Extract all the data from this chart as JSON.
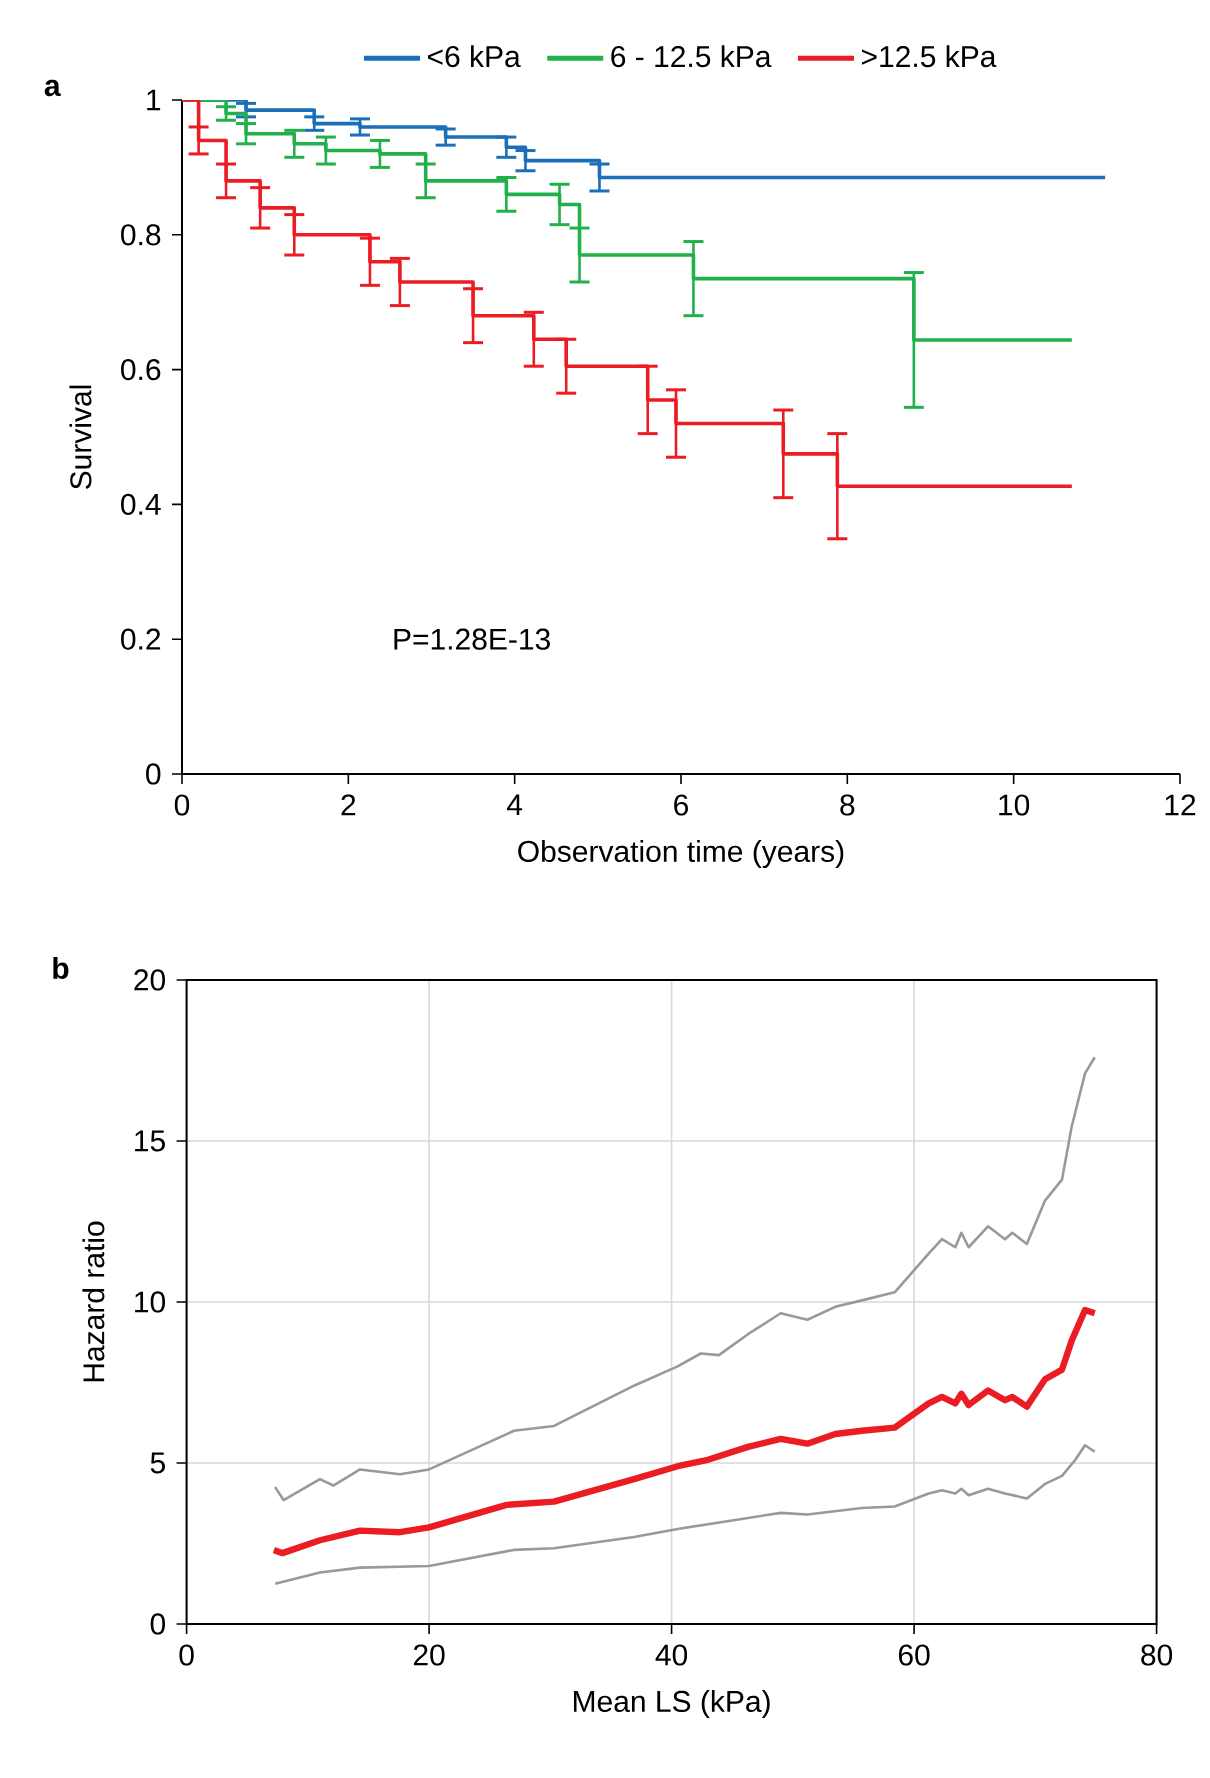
{
  "chart_data": [
    {
      "type": "step",
      "title": "a",
      "xlabel": "Observation time (years)",
      "ylabel": "Survival",
      "xlim": [
        0,
        12
      ],
      "ylim": [
        0,
        1
      ],
      "xticks": [
        0,
        2,
        4,
        6,
        8,
        10,
        12
      ],
      "yticks": [
        0,
        0.2,
        0.4,
        0.6,
        0.8,
        1
      ],
      "legend": "top",
      "grid": false,
      "annotations": [
        "P=1.28E-13"
      ],
      "series": [
        {
          "name": "<6 kPa",
          "color": "#1a6fb8",
          "x": [
            0,
            0.77,
            1.59,
            2.14,
            3.17,
            3.9,
            4.13,
            5.02,
            11.1
          ],
          "values": [
            1,
            0.985,
            0.965,
            0.96,
            0.945,
            0.93,
            0.91,
            0.885,
            0.885
          ],
          "errors": [
            null,
            0.01,
            0.01,
            0.012,
            0.012,
            0.015,
            0.015,
            0.02,
            null
          ]
        },
        {
          "name": "6 - 12.5 kPa",
          "color": "#22b04b",
          "x": [
            0,
            0.53,
            0.77,
            1.35,
            1.73,
            2.38,
            2.93,
            3.9,
            4.54,
            4.78,
            6.15,
            8.8,
            10.7
          ],
          "values": [
            1,
            0.98,
            0.95,
            0.935,
            0.925,
            0.92,
            0.88,
            0.86,
            0.845,
            0.77,
            0.735,
            0.644,
            0.644
          ],
          "errors": [
            null,
            0.01,
            0.015,
            0.02,
            0.02,
            0.02,
            0.025,
            0.025,
            0.03,
            0.04,
            0.055,
            0.1,
            null
          ]
        },
        {
          "name": ">12.5 kPa",
          "color": "#ec1c24",
          "x": [
            0,
            0.2,
            0.53,
            0.94,
            1.35,
            2.26,
            2.62,
            3.5,
            4.23,
            4.62,
            5.6,
            5.94,
            7.23,
            7.88,
            10.7
          ],
          "values": [
            1,
            0.94,
            0.88,
            0.84,
            0.8,
            0.76,
            0.73,
            0.68,
            0.645,
            0.605,
            0.555,
            0.52,
            0.475,
            0.427,
            0.427
          ],
          "errors": [
            null,
            0.02,
            0.025,
            0.03,
            0.03,
            0.035,
            0.035,
            0.04,
            0.04,
            0.04,
            0.05,
            0.05,
            0.065,
            0.078,
            null
          ]
        }
      ]
    },
    {
      "type": "line",
      "title": "b",
      "xlabel": "Mean LS (kPa)",
      "ylabel": "Hazard ratio",
      "xlim": [
        0,
        80
      ],
      "ylim": [
        0,
        20
      ],
      "xticks": [
        0,
        20,
        40,
        60,
        80
      ],
      "yticks": [
        0,
        5,
        10,
        15,
        20
      ],
      "grid": true,
      "series": [
        {
          "color": "#999999",
          "x": [
            7.3,
            8,
            11,
            12.1,
            14.3,
            17.6,
            20,
            27,
            30.3,
            36.9,
            40.5,
            42.4,
            43.9,
            46.3,
            49,
            51.2,
            53.5,
            55.7,
            58.4,
            61.2,
            62.3,
            63.4,
            63.9,
            64.5,
            66.1,
            67.5,
            68.1,
            69.3,
            70.8,
            72.2,
            73,
            74.1,
            74.9
          ],
          "values": [
            4.25,
            3.85,
            4.5,
            4.3,
            4.8,
            4.65,
            4.8,
            6.0,
            6.15,
            7.4,
            8.0,
            8.4,
            8.35,
            9.0,
            9.65,
            9.45,
            9.85,
            10.05,
            10.3,
            11.5,
            11.95,
            11.7,
            12.15,
            11.7,
            12.35,
            11.95,
            12.15,
            11.8,
            13.15,
            13.8,
            15.45,
            17.1,
            17.6
          ]
        },
        {
          "color": "#ec1c24",
          "x": [
            7.2,
            7.9,
            11,
            14.3,
            17.6,
            20,
            26.4,
            30.3,
            36.9,
            40.5,
            43,
            46.3,
            49,
            51.2,
            53.5,
            55.7,
            58.4,
            61.2,
            62.3,
            63.4,
            63.9,
            64.5,
            66.1,
            67.5,
            68.1,
            69.3,
            70.8,
            72.2,
            73,
            74.1,
            74.9
          ],
          "values": [
            2.3,
            2.2,
            2.6,
            2.9,
            2.85,
            3.0,
            3.7,
            3.8,
            4.5,
            4.9,
            5.1,
            5.5,
            5.75,
            5.6,
            5.9,
            6.0,
            6.1,
            6.85,
            7.05,
            6.85,
            7.15,
            6.8,
            7.25,
            6.95,
            7.05,
            6.75,
            7.6,
            7.9,
            8.8,
            9.75,
            9.65
          ]
        },
        {
          "color": "#999999",
          "x": [
            7.3,
            11,
            14.3,
            20,
            27,
            30.3,
            36.9,
            40.5,
            43,
            49,
            51.2,
            55.7,
            58.4,
            61.2,
            62.3,
            63.4,
            63.9,
            64.5,
            66.1,
            67.5,
            69.3,
            70.8,
            72.2,
            73.3,
            74.1,
            74.9
          ],
          "values": [
            1.25,
            1.6,
            1.75,
            1.8,
            2.3,
            2.35,
            2.7,
            2.95,
            3.1,
            3.45,
            3.4,
            3.6,
            3.65,
            4.05,
            4.15,
            4.05,
            4.2,
            4.0,
            4.2,
            4.05,
            3.9,
            4.35,
            4.6,
            5.1,
            5.55,
            5.35
          ]
        }
      ]
    }
  ]
}
